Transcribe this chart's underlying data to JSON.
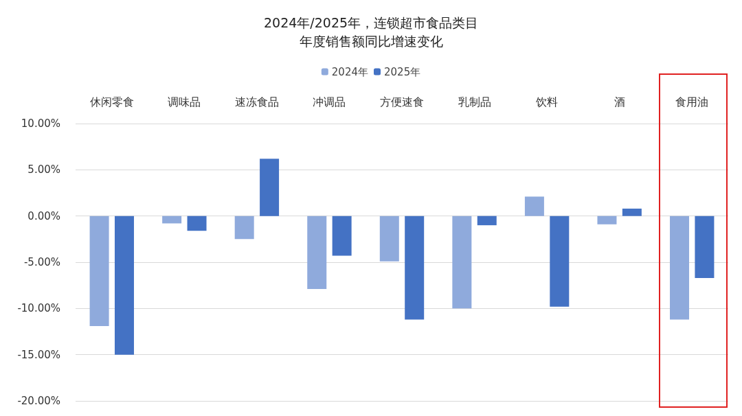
{
  "chart_data": {
    "type": "bar",
    "title": "2024年/2025年，连锁超市食品类目",
    "subtitle": "年度销售额同比增速变化",
    "categories": [
      "休闲零食",
      "调味品",
      "速冻食品",
      "冲调品",
      "方便速食",
      "乳制品",
      "饮料",
      "酒",
      "食用油"
    ],
    "series": [
      {
        "name": "2024年",
        "color": "#8faadc",
        "values": [
          -11.9,
          -0.8,
          -2.5,
          -7.9,
          -4.9,
          -10.0,
          2.1,
          -0.9,
          -11.2
        ]
      },
      {
        "name": "2025年",
        "color": "#4472c4",
        "values": [
          -15.0,
          -1.6,
          6.2,
          -4.3,
          -11.2,
          -1.0,
          -9.8,
          0.8,
          -6.7
        ]
      }
    ],
    "ylim": [
      -20,
      10
    ],
    "yticks": [
      {
        "value": -20,
        "label": "-20.00%"
      },
      {
        "value": -15,
        "label": "-15.00%"
      },
      {
        "value": -10,
        "label": "-10.00%"
      },
      {
        "value": -5,
        "label": "-5.00%"
      },
      {
        "value": 0,
        "label": "0.00%"
      },
      {
        "value": 5,
        "label": "5.00%"
      },
      {
        "value": 10,
        "label": "10.00%"
      }
    ],
    "grid": "y",
    "legend": "top"
  }
}
